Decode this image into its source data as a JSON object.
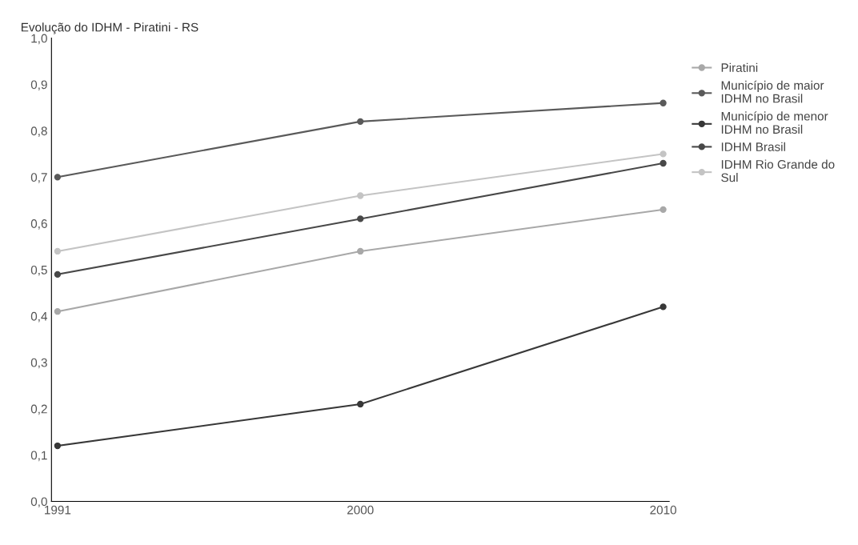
{
  "chart_data": {
    "type": "line",
    "title": "Evolução do IDHM - Piratini - RS",
    "categories": [
      "1991",
      "2000",
      "2010"
    ],
    "series": [
      {
        "name": "Piratini",
        "color": "#a8a8a8",
        "values": [
          0.41,
          0.54,
          0.63
        ]
      },
      {
        "name": "Município de maior IDHM no Brasil",
        "color": "#5a5a5a",
        "values": [
          0.7,
          0.82,
          0.86
        ]
      },
      {
        "name": "Município de menor IDHM no Brasil",
        "color": "#383838",
        "values": [
          0.12,
          0.21,
          0.42
        ]
      },
      {
        "name": "IDHM Brasil",
        "color": "#484848",
        "values": [
          0.49,
          0.61,
          0.73
        ]
      },
      {
        "name": "IDHM Rio Grande do Sul",
        "color": "#c4c4c4",
        "values": [
          0.54,
          0.66,
          0.75
        ]
      }
    ],
    "ylim": [
      0,
      1
    ],
    "yticks": [
      {
        "value": 0,
        "label": "0,0"
      },
      {
        "value": 0.1,
        "label": "0,1"
      },
      {
        "value": 0.2,
        "label": "0,2"
      },
      {
        "value": 0.3,
        "label": "0,3"
      },
      {
        "value": 0.4,
        "label": "0,4"
      },
      {
        "value": 0.5,
        "label": "0,5"
      },
      {
        "value": 0.6,
        "label": "0,6"
      },
      {
        "value": 0.7,
        "label": "0,7"
      },
      {
        "value": 0.8,
        "label": "0,8"
      },
      {
        "value": 0.9,
        "label": "0,9"
      },
      {
        "value": 1.0,
        "label": "1,0"
      }
    ],
    "marker": "circle",
    "legend": "right",
    "grid": false
  }
}
